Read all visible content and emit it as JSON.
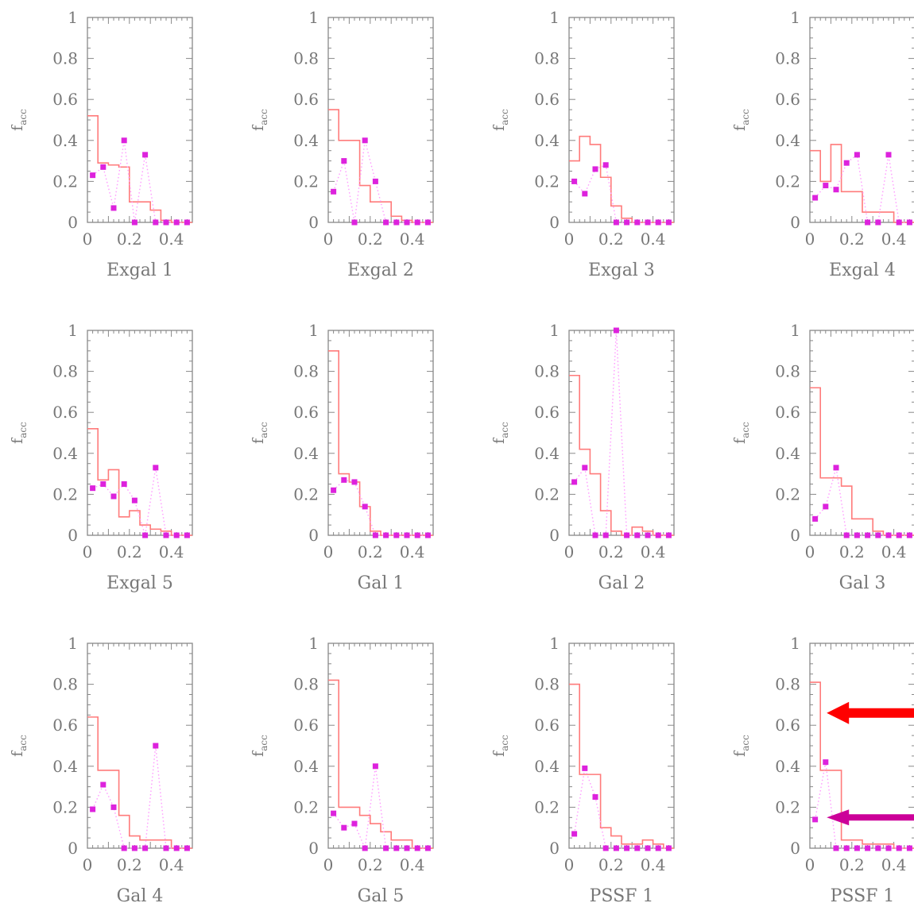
{
  "figure": {
    "colors": {
      "hist": "#ff7b7b",
      "points": "#dd22dd",
      "dotted": "#ff99ff",
      "axis": "#888888",
      "text": "#777777",
      "arrow_red": "#ff0000",
      "arrow_magenta": "#cc0099"
    }
  },
  "chart_data": [
    {
      "type": "line",
      "title": "Exgal 1",
      "ylabel": "f_acc",
      "xlim": [
        0,
        0.5
      ],
      "ylim": [
        0,
        1
      ],
      "xticks": [
        "0",
        "0.2",
        "0.4"
      ],
      "yticks": [
        "0",
        "0.2",
        "0.4",
        "0.6",
        "0.8",
        "1"
      ],
      "hist_edges": [
        0,
        0.05,
        0.1,
        0.15,
        0.2,
        0.25,
        0.3,
        0.35,
        0.4,
        0.45,
        0.5
      ],
      "hist_values": [
        0.52,
        0.29,
        0.28,
        0.27,
        0.1,
        0.1,
        0.06,
        0.01,
        0.0,
        0.0
      ],
      "points": [
        [
          0.025,
          0.23
        ],
        [
          0.075,
          0.27
        ],
        [
          0.125,
          0.07
        ],
        [
          0.175,
          0.4
        ],
        [
          0.225,
          0.0
        ],
        [
          0.275,
          0.33
        ],
        [
          0.325,
          0.0
        ],
        [
          0.375,
          0.0
        ],
        [
          0.425,
          0.0
        ],
        [
          0.475,
          0.0
        ]
      ]
    },
    {
      "type": "line",
      "title": "Exgal 2",
      "ylabel": "f_acc",
      "xlim": [
        0,
        0.5
      ],
      "ylim": [
        0,
        1
      ],
      "xticks": [
        "0",
        "0.2",
        "0.4"
      ],
      "yticks": [
        "0",
        "0.2",
        "0.4",
        "0.6",
        "0.8",
        "1"
      ],
      "hist_edges": [
        0,
        0.05,
        0.1,
        0.15,
        0.2,
        0.25,
        0.3,
        0.35,
        0.4,
        0.45,
        0.5
      ],
      "hist_values": [
        0.55,
        0.4,
        0.4,
        0.18,
        0.1,
        0.1,
        0.03,
        0.01,
        0.0,
        0.0
      ],
      "points": [
        [
          0.025,
          0.15
        ],
        [
          0.075,
          0.3
        ],
        [
          0.125,
          0.0
        ],
        [
          0.175,
          0.4
        ],
        [
          0.225,
          0.2
        ],
        [
          0.275,
          0.0
        ],
        [
          0.325,
          0.0
        ],
        [
          0.375,
          0.0
        ],
        [
          0.425,
          0.0
        ],
        [
          0.475,
          0.0
        ]
      ]
    },
    {
      "type": "line",
      "title": "Exgal 3",
      "ylabel": "f_acc",
      "xlim": [
        0,
        0.5
      ],
      "ylim": [
        0,
        1
      ],
      "xticks": [
        "0",
        "0.2",
        "0.4"
      ],
      "yticks": [
        "0",
        "0.2",
        "0.4",
        "0.6",
        "0.8",
        "1"
      ],
      "hist_edges": [
        0,
        0.05,
        0.1,
        0.15,
        0.2,
        0.25,
        0.3,
        0.35,
        0.4,
        0.45,
        0.5
      ],
      "hist_values": [
        0.3,
        0.42,
        0.38,
        0.22,
        0.08,
        0.02,
        0.0,
        0.0,
        0.0,
        0.0
      ],
      "points": [
        [
          0.025,
          0.2
        ],
        [
          0.075,
          0.14
        ],
        [
          0.125,
          0.26
        ],
        [
          0.175,
          0.28
        ],
        [
          0.225,
          0.0
        ],
        [
          0.275,
          0.0
        ],
        [
          0.325,
          0.0
        ],
        [
          0.375,
          0.0
        ],
        [
          0.425,
          0.0
        ],
        [
          0.475,
          0.0
        ]
      ]
    },
    {
      "type": "line",
      "title": "Exgal 4",
      "ylabel": "f_acc",
      "xlim": [
        0,
        0.5
      ],
      "ylim": [
        0,
        1
      ],
      "xticks": [
        "0",
        "0.2",
        "0.4"
      ],
      "yticks": [
        "0",
        "0.2",
        "0.4",
        "0.6",
        "0.8",
        "1"
      ],
      "hist_edges": [
        0,
        0.05,
        0.1,
        0.15,
        0.2,
        0.25,
        0.3,
        0.35,
        0.4,
        0.45,
        0.5
      ],
      "hist_values": [
        0.35,
        0.2,
        0.38,
        0.15,
        0.15,
        0.05,
        0.05,
        0.05,
        0.0,
        0.0
      ],
      "points": [
        [
          0.025,
          0.12
        ],
        [
          0.075,
          0.18
        ],
        [
          0.125,
          0.16
        ],
        [
          0.175,
          0.29
        ],
        [
          0.225,
          0.33
        ],
        [
          0.275,
          0.0
        ],
        [
          0.325,
          0.0
        ],
        [
          0.375,
          0.33
        ],
        [
          0.425,
          0.0
        ],
        [
          0.475,
          0.0
        ]
      ]
    },
    {
      "type": "line",
      "title": "Exgal 5",
      "ylabel": "f_acc",
      "xlim": [
        0,
        0.5
      ],
      "ylim": [
        0,
        1
      ],
      "xticks": [
        "0",
        "0.2",
        "0.4"
      ],
      "yticks": [
        "0",
        "0.2",
        "0.4",
        "0.6",
        "0.8",
        "1"
      ],
      "hist_edges": [
        0,
        0.05,
        0.1,
        0.15,
        0.2,
        0.25,
        0.3,
        0.35,
        0.4,
        0.45,
        0.5
      ],
      "hist_values": [
        0.52,
        0.27,
        0.32,
        0.09,
        0.12,
        0.05,
        0.03,
        0.02,
        0.0,
        0.0
      ],
      "points": [
        [
          0.025,
          0.23
        ],
        [
          0.075,
          0.25
        ],
        [
          0.125,
          0.19
        ],
        [
          0.175,
          0.25
        ],
        [
          0.225,
          0.17
        ],
        [
          0.275,
          0.0
        ],
        [
          0.325,
          0.33
        ],
        [
          0.375,
          0.0
        ],
        [
          0.425,
          0.0
        ],
        [
          0.475,
          0.0
        ]
      ]
    },
    {
      "type": "line",
      "title": "Gal 1",
      "ylabel": "f_acc",
      "xlim": [
        0,
        0.5
      ],
      "ylim": [
        0,
        1
      ],
      "xticks": [
        "0",
        "0.2",
        "0.4"
      ],
      "yticks": [
        "0",
        "0.2",
        "0.4",
        "0.6",
        "0.8",
        "1"
      ],
      "hist_edges": [
        0,
        0.05,
        0.1,
        0.15,
        0.2,
        0.25,
        0.3,
        0.35,
        0.4,
        0.45,
        0.5
      ],
      "hist_values": [
        0.9,
        0.3,
        0.26,
        0.14,
        0.02,
        0.0,
        0.0,
        0.0,
        0.0,
        0.0
      ],
      "points": [
        [
          0.025,
          0.22
        ],
        [
          0.075,
          0.27
        ],
        [
          0.125,
          0.26
        ],
        [
          0.175,
          0.14
        ],
        [
          0.225,
          0.0
        ],
        [
          0.275,
          0.0
        ],
        [
          0.325,
          0.0
        ],
        [
          0.375,
          0.0
        ],
        [
          0.425,
          0.0
        ],
        [
          0.475,
          0.0
        ]
      ]
    },
    {
      "type": "line",
      "title": "Gal 2",
      "ylabel": "f_acc",
      "xlim": [
        0,
        0.5
      ],
      "ylim": [
        0,
        1
      ],
      "xticks": [
        "0",
        "0.2",
        "0.4"
      ],
      "yticks": [
        "0",
        "0.2",
        "0.4",
        "0.6",
        "0.8",
        "1"
      ],
      "hist_edges": [
        0,
        0.05,
        0.1,
        0.15,
        0.2,
        0.25,
        0.3,
        0.35,
        0.4,
        0.45,
        0.5
      ],
      "hist_values": [
        0.78,
        0.42,
        0.3,
        0.12,
        0.02,
        0.0,
        0.04,
        0.02,
        0.0,
        0.0
      ],
      "points": [
        [
          0.025,
          0.26
        ],
        [
          0.075,
          0.33
        ],
        [
          0.125,
          0.0
        ],
        [
          0.175,
          0.0
        ],
        [
          0.225,
          1.0
        ],
        [
          0.275,
          0.0
        ],
        [
          0.325,
          0.0
        ],
        [
          0.375,
          0.0
        ],
        [
          0.425,
          0.0
        ],
        [
          0.475,
          0.0
        ]
      ]
    },
    {
      "type": "line",
      "title": "Gal 3",
      "ylabel": "f_acc",
      "xlim": [
        0,
        0.5
      ],
      "ylim": [
        0,
        1
      ],
      "xticks": [
        "0",
        "0.2",
        "0.4"
      ],
      "yticks": [
        "0",
        "0.2",
        "0.4",
        "0.6",
        "0.8",
        "1"
      ],
      "hist_edges": [
        0,
        0.05,
        0.1,
        0.15,
        0.2,
        0.25,
        0.3,
        0.35,
        0.4,
        0.45,
        0.5
      ],
      "hist_values": [
        0.72,
        0.28,
        0.28,
        0.24,
        0.08,
        0.08,
        0.02,
        0.0,
        0.0,
        0.0
      ],
      "points": [
        [
          0.025,
          0.08
        ],
        [
          0.075,
          0.14
        ],
        [
          0.125,
          0.33
        ],
        [
          0.175,
          0.0
        ],
        [
          0.225,
          0.0
        ],
        [
          0.275,
          0.0
        ],
        [
          0.325,
          0.0
        ],
        [
          0.375,
          0.0
        ],
        [
          0.425,
          0.0
        ],
        [
          0.475,
          0.0
        ]
      ]
    },
    {
      "type": "line",
      "title": "Gal 4",
      "ylabel": "f_acc",
      "xlim": [
        0,
        0.5
      ],
      "ylim": [
        0,
        1
      ],
      "xticks": [
        "0",
        "0.2",
        "0.4"
      ],
      "yticks": [
        "0",
        "0.2",
        "0.4",
        "0.6",
        "0.8",
        "1"
      ],
      "hist_edges": [
        0,
        0.05,
        0.1,
        0.15,
        0.2,
        0.25,
        0.3,
        0.35,
        0.4,
        0.45,
        0.5
      ],
      "hist_values": [
        0.64,
        0.38,
        0.38,
        0.16,
        0.06,
        0.04,
        0.04,
        0.04,
        0.0,
        0.0
      ],
      "points": [
        [
          0.025,
          0.19
        ],
        [
          0.075,
          0.31
        ],
        [
          0.125,
          0.2
        ],
        [
          0.175,
          0.0
        ],
        [
          0.225,
          0.0
        ],
        [
          0.275,
          0.0
        ],
        [
          0.325,
          0.5
        ],
        [
          0.375,
          0.0
        ],
        [
          0.425,
          0.0
        ],
        [
          0.475,
          0.0
        ]
      ]
    },
    {
      "type": "line",
      "title": "Gal 5",
      "ylabel": "f_acc",
      "xlim": [
        0,
        0.5
      ],
      "ylim": [
        0,
        1
      ],
      "xticks": [
        "0",
        "0.2",
        "0.4"
      ],
      "yticks": [
        "0",
        "0.2",
        "0.4",
        "0.6",
        "0.8",
        "1"
      ],
      "hist_edges": [
        0,
        0.05,
        0.1,
        0.15,
        0.2,
        0.25,
        0.3,
        0.35,
        0.4,
        0.45,
        0.5
      ],
      "hist_values": [
        0.82,
        0.2,
        0.2,
        0.16,
        0.12,
        0.08,
        0.04,
        0.04,
        0.0,
        0.0
      ],
      "points": [
        [
          0.025,
          0.17
        ],
        [
          0.075,
          0.1
        ],
        [
          0.125,
          0.12
        ],
        [
          0.175,
          0.0
        ],
        [
          0.225,
          0.4
        ],
        [
          0.275,
          0.0
        ],
        [
          0.325,
          0.0
        ],
        [
          0.375,
          0.0
        ],
        [
          0.425,
          0.0
        ],
        [
          0.475,
          0.0
        ]
      ]
    },
    {
      "type": "line",
      "title": "PSSF 1",
      "ylabel": "f_acc",
      "xlim": [
        0,
        0.5
      ],
      "ylim": [
        0,
        1
      ],
      "xticks": [
        "0",
        "0.2",
        "0.4"
      ],
      "yticks": [
        "0",
        "0.2",
        "0.4",
        "0.6",
        "0.8",
        "1"
      ],
      "hist_edges": [
        0,
        0.05,
        0.1,
        0.15,
        0.2,
        0.25,
        0.3,
        0.35,
        0.4,
        0.45,
        0.5
      ],
      "hist_values": [
        0.8,
        0.36,
        0.36,
        0.1,
        0.06,
        0.02,
        0.02,
        0.04,
        0.02,
        0.0
      ],
      "points": [
        [
          0.025,
          0.07
        ],
        [
          0.075,
          0.39
        ],
        [
          0.125,
          0.25
        ],
        [
          0.175,
          0.0
        ],
        [
          0.225,
          0.0
        ],
        [
          0.275,
          0.0
        ],
        [
          0.325,
          0.0
        ],
        [
          0.375,
          0.0
        ],
        [
          0.425,
          0.0
        ],
        [
          0.475,
          0.0
        ]
      ]
    },
    {
      "type": "line",
      "title": "PSSF 1",
      "ylabel": "f_acc",
      "xlim": [
        0,
        0.5
      ],
      "ylim": [
        0,
        1
      ],
      "xticks": [
        "0",
        "0.2",
        "0.4"
      ],
      "yticks": [
        "0",
        "0.2",
        "0.4",
        "0.6",
        "0.8",
        "1"
      ],
      "hist_edges": [
        0,
        0.05,
        0.1,
        0.15,
        0.2,
        0.25,
        0.3,
        0.35,
        0.4,
        0.45,
        0.5
      ],
      "hist_values": [
        0.81,
        0.38,
        0.38,
        0.04,
        0.04,
        0.02,
        0.02,
        0.02,
        0.0,
        0.0
      ],
      "points": [
        [
          0.025,
          0.14
        ],
        [
          0.075,
          0.42
        ],
        [
          0.125,
          0.0
        ],
        [
          0.175,
          0.0
        ],
        [
          0.225,
          0.0
        ],
        [
          0.275,
          0.0
        ],
        [
          0.325,
          0.0
        ],
        [
          0.375,
          0.0
        ],
        [
          0.425,
          0.0
        ],
        [
          0.475,
          0.0
        ]
      ],
      "annotations": [
        {
          "type": "arrow",
          "color": "arrow_red",
          "target_x": 0.05,
          "target_y": 0.66
        },
        {
          "type": "arrow",
          "color": "arrow_magenta",
          "target_x": 0.05,
          "target_y": 0.15
        }
      ]
    }
  ]
}
